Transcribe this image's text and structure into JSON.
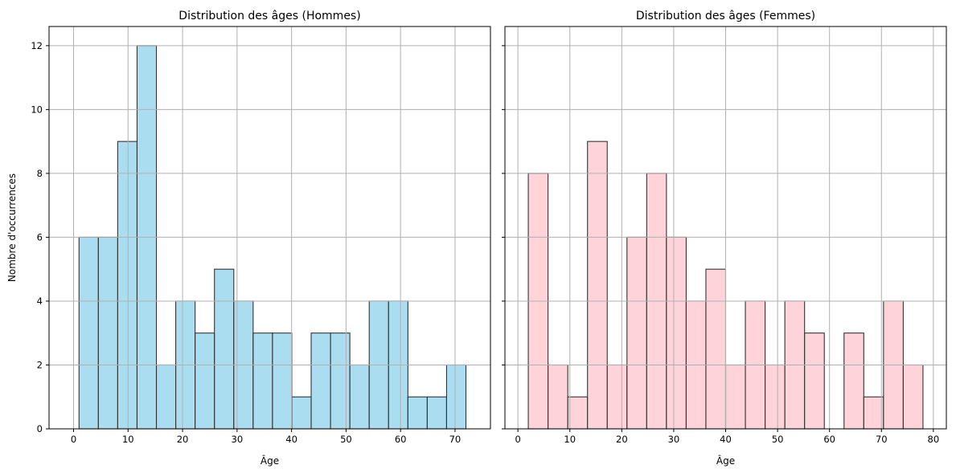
{
  "chart_data": [
    {
      "type": "bar",
      "title": "Distribution des âges (Hommes)",
      "xlabel": "Âge",
      "ylabel": "Nombre d'occurrences",
      "xlim": [
        -4.5,
        76.5
      ],
      "ylim": [
        0,
        12.6
      ],
      "xticks": [
        "0",
        "10",
        "20",
        "30",
        "40",
        "50",
        "60",
        "70"
      ],
      "yticks": [
        "0",
        "2",
        "4",
        "6",
        "8",
        "10",
        "12"
      ],
      "grid": true,
      "bar_color": "#87ceeb",
      "bin_edges": [
        1.0,
        4.55,
        8.1,
        11.65,
        15.2,
        18.75,
        22.3,
        25.85,
        29.4,
        32.95,
        36.5,
        40.05,
        43.6,
        47.15,
        50.7,
        54.25,
        57.8,
        61.35,
        64.9,
        68.45,
        72.0
      ],
      "values": [
        6,
        6,
        9,
        12,
        2,
        4,
        3,
        5,
        4,
        3,
        3,
        1,
        3,
        3,
        2,
        4,
        4,
        1,
        1,
        2
      ]
    },
    {
      "type": "bar",
      "title": "Distribution des âges (Femmes)",
      "xlabel": "Âge",
      "ylabel": "",
      "xlim": [
        -2.5,
        82.5
      ],
      "ylim": [
        0,
        12.6
      ],
      "xticks": [
        "0",
        "10",
        "20",
        "30",
        "40",
        "50",
        "60",
        "70",
        "80"
      ],
      "yticks": [],
      "grid": true,
      "bar_color": "#ffc0cb",
      "bin_edges": [
        2.0,
        5.8,
        9.6,
        13.4,
        17.2,
        21.0,
        24.8,
        28.6,
        32.4,
        36.2,
        40.0,
        43.8,
        47.6,
        51.4,
        55.2,
        59.0,
        62.8,
        66.6,
        70.4,
        74.2,
        78.0
      ],
      "values": [
        8,
        2,
        1,
        9,
        2,
        6,
        8,
        6,
        4,
        5,
        2,
        4,
        2,
        4,
        3,
        0,
        3,
        1,
        4,
        2
      ]
    }
  ]
}
